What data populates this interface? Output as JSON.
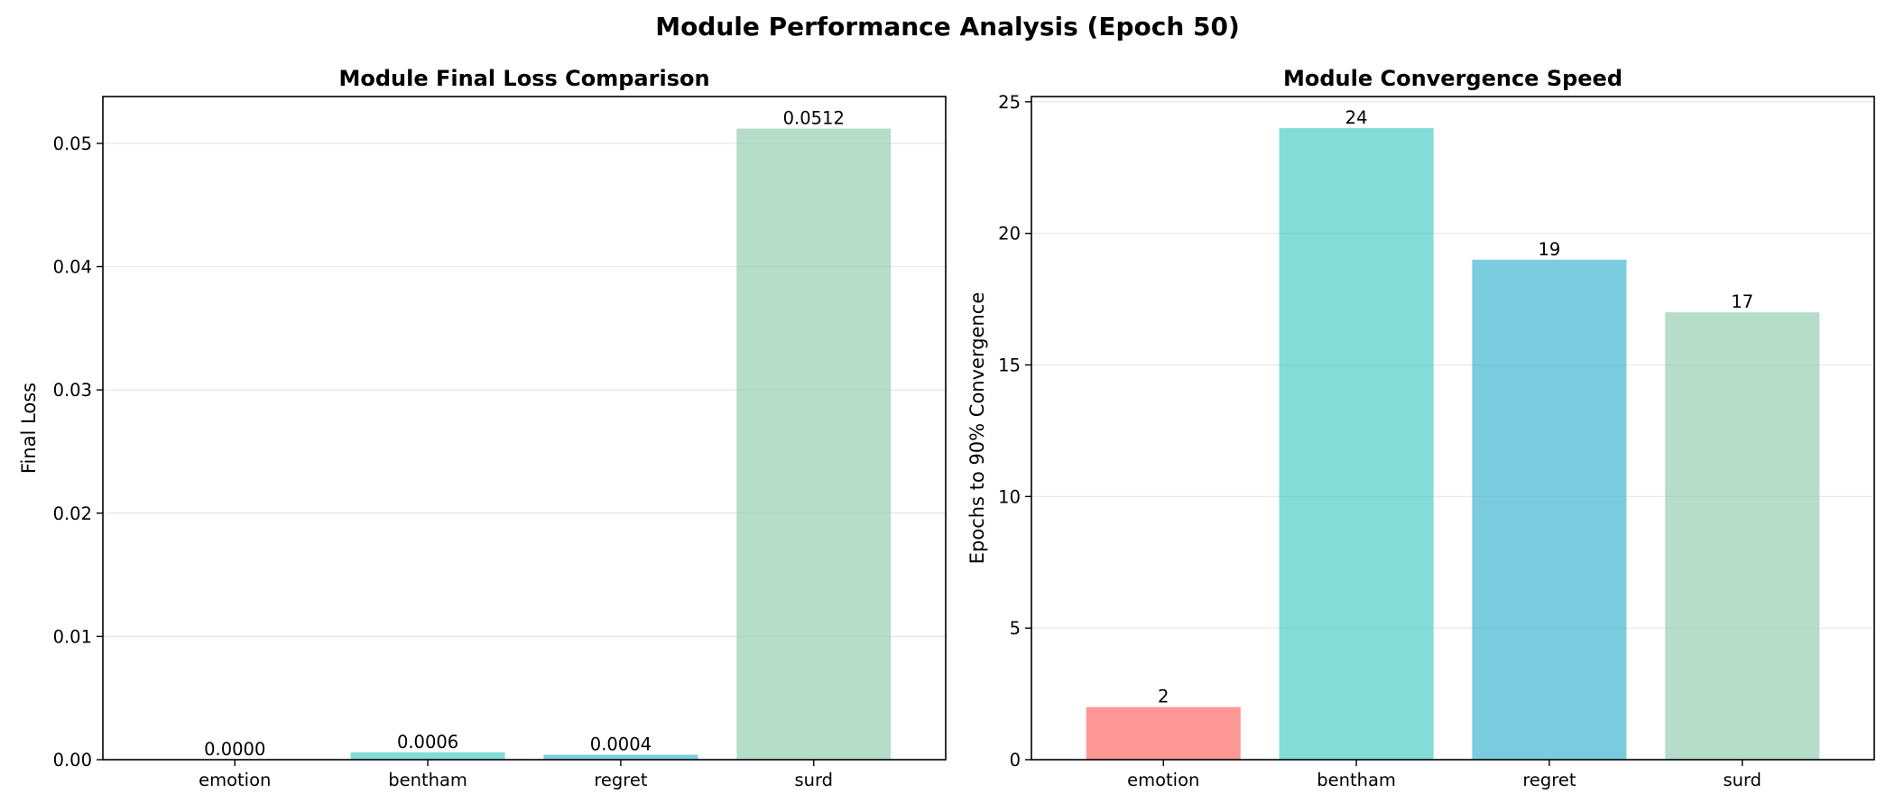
{
  "figure": {
    "title": "Module Performance Analysis (Epoch 50)"
  },
  "chart_data": [
    {
      "type": "bar",
      "title": "Module Final Loss Comparison",
      "xlabel": "",
      "ylabel": "Final Loss",
      "categories": [
        "emotion",
        "bentham",
        "regret",
        "surd"
      ],
      "values": [
        0.0,
        0.0006,
        0.0004,
        0.0512
      ],
      "value_labels": [
        "0.0000",
        "0.0006",
        "0.0004",
        "0.0512"
      ],
      "colors": [
        "#FF6B6B",
        "#4ECDC4",
        "#45B7D1",
        "#96CEB4"
      ],
      "ylim": [
        0,
        0.0538
      ],
      "yticks": [
        0,
        0.01,
        0.02,
        0.03,
        0.04,
        0.05
      ],
      "ytick_labels": [
        "0.00",
        "0.01",
        "0.02",
        "0.03",
        "0.04",
        "0.05"
      ],
      "grid": "y"
    },
    {
      "type": "bar",
      "title": "Module Convergence Speed",
      "xlabel": "",
      "ylabel": "Epochs to 90% Convergence",
      "categories": [
        "emotion",
        "bentham",
        "regret",
        "surd"
      ],
      "values": [
        2,
        24,
        19,
        17
      ],
      "value_labels": [
        "2",
        "24",
        "19",
        "17"
      ],
      "colors": [
        "#FF6B6B",
        "#4ECDC4",
        "#45B7D1",
        "#96CEB4"
      ],
      "ylim": [
        0,
        25.2
      ],
      "yticks": [
        0,
        5,
        10,
        15,
        20,
        25
      ],
      "ytick_labels": [
        "0",
        "5",
        "10",
        "15",
        "20",
        "25"
      ],
      "grid": "y"
    }
  ]
}
